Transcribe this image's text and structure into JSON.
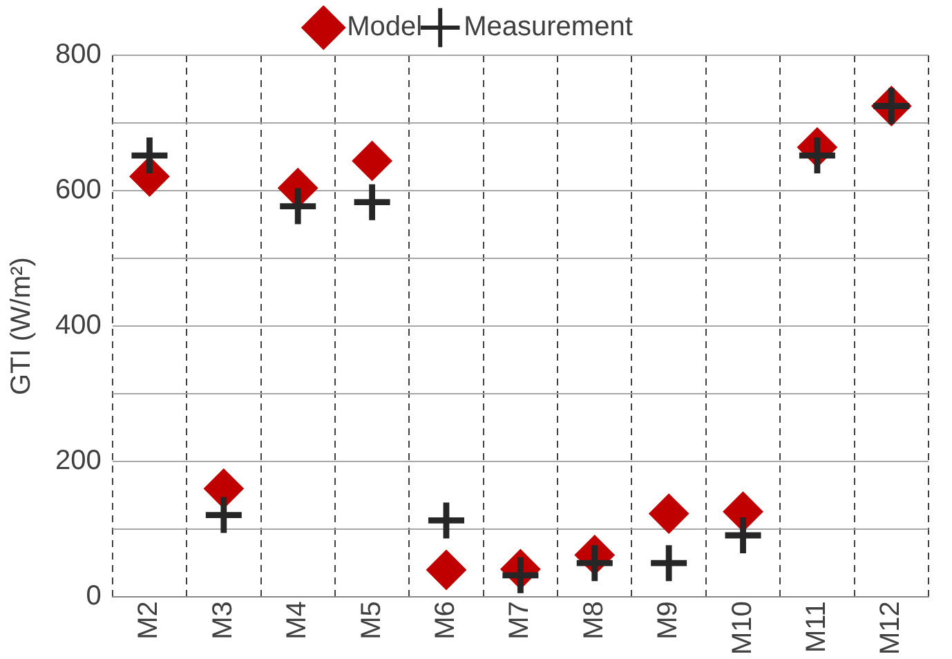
{
  "chart_data": {
    "type": "scatter",
    "ylabel": "GTI (W/m²)",
    "categories": [
      "M2",
      "M3",
      "M4",
      "M5",
      "M6",
      "M7",
      "M8",
      "M9",
      "M10",
      "M11",
      "M12"
    ],
    "series": [
      {
        "name": "Model",
        "color": "#c00000",
        "marker": "diamond",
        "values": [
          621,
          160,
          604,
          644,
          40,
          41,
          62,
          123,
          126,
          664,
          725
        ]
      },
      {
        "name": "Measurement",
        "color": "#262626",
        "marker": "cross",
        "values": [
          652,
          121,
          577,
          583,
          113,
          32,
          50,
          50,
          91,
          652,
          725
        ]
      }
    ],
    "ylim": [
      0,
      800
    ],
    "yticks": [
      0,
      {
        "value": 100,
        "label": null
      },
      200,
      {
        "value": 300,
        "label": null
      },
      400,
      {
        "value": 500,
        "label": null
      },
      600,
      {
        "value": 700,
        "label": null
      },
      800
    ],
    "grid": true,
    "legend": "top"
  }
}
